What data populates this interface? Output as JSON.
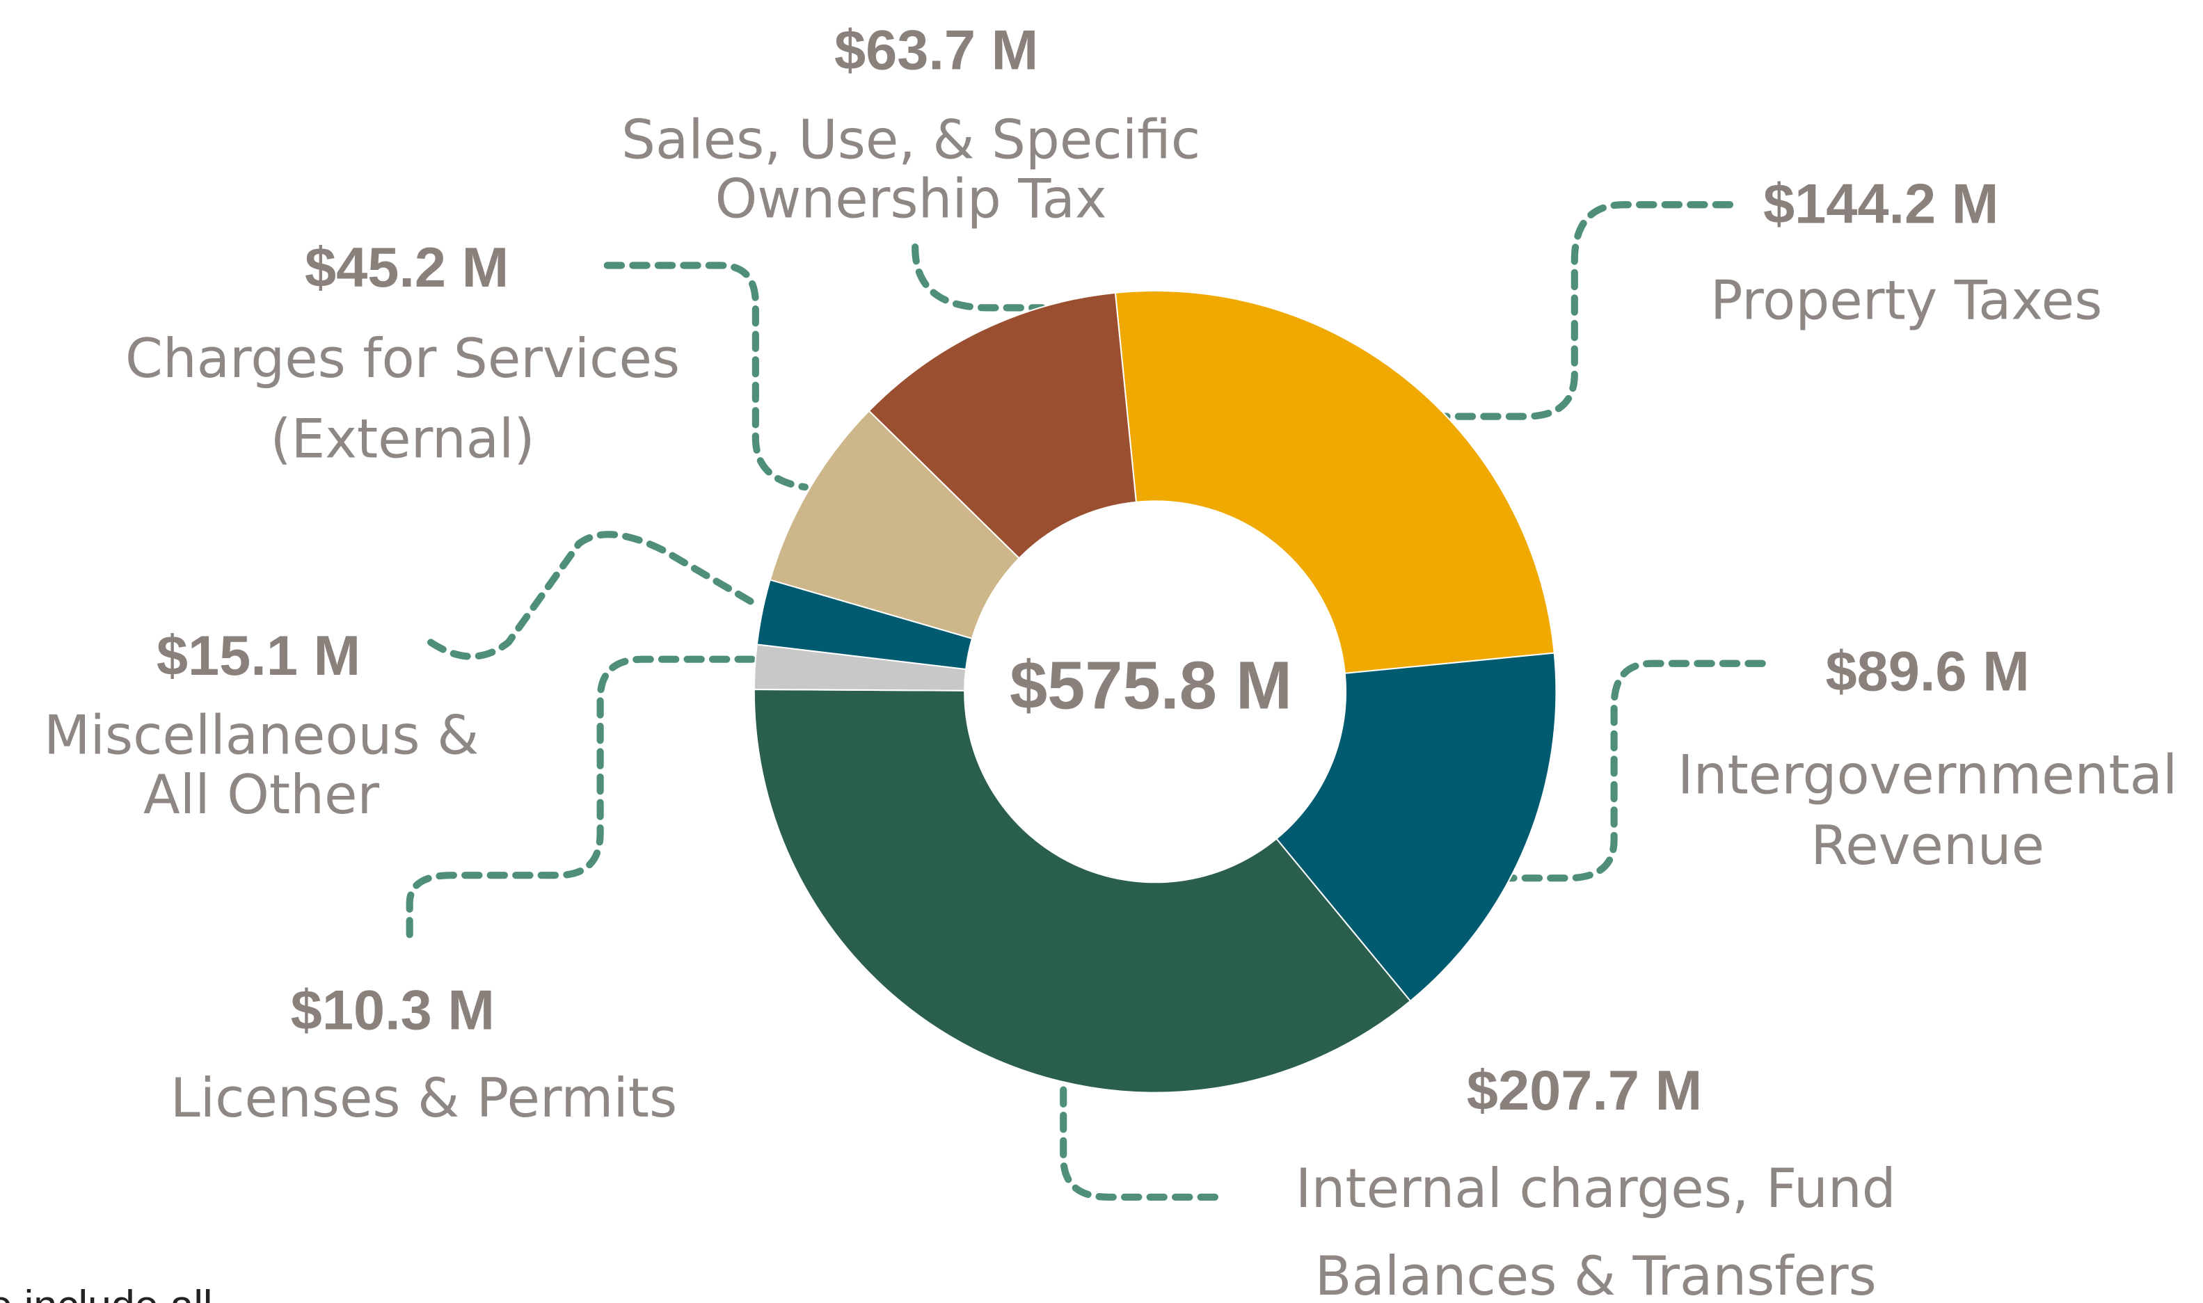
{
  "chart_data": {
    "type": "donut",
    "center_label": "$575.8 M",
    "categories": [
      "Property Taxes",
      "Intergovernmental\nRevenue",
      "Internal charges, Fund\nBalances & Transfers",
      "Licenses & Permits",
      "Miscellaneous &\nAll Other",
      "Charges for Services\n(External)",
      "Sales, Use, & Specific\nOwnership Tax"
    ],
    "values": [
      144.2,
      89.6,
      207.7,
      10.3,
      15.1,
      45.2,
      63.7
    ],
    "value_labels": [
      "$144.2 M",
      "$89.6 M",
      "$207.7 M",
      "$10.3 M",
      "$15.1 M",
      "$45.2 M",
      "$63.7 M"
    ],
    "colors": [
      "#f0a900",
      "#005a70",
      "#2a5e4d",
      "#c8c8c8",
      "#005a70",
      "#cdb78a",
      "#9a5030"
    ],
    "note": "e include all"
  }
}
